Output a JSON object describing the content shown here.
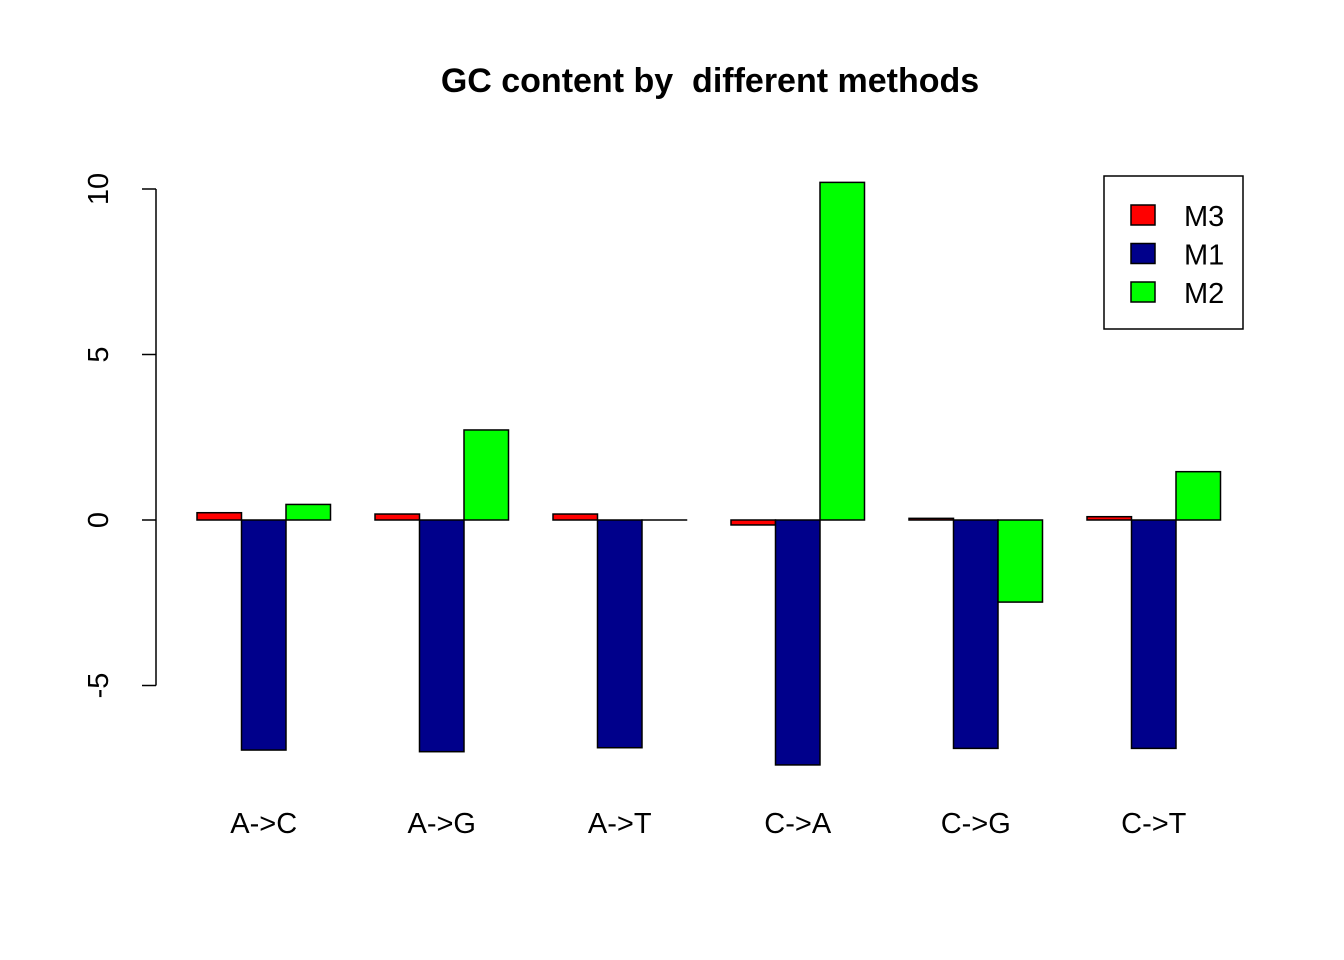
{
  "chart_data": {
    "type": "bar",
    "title": "GC content by  different methods",
    "xlabel": "",
    "ylabel": "",
    "categories": [
      "A->C",
      "A->G",
      "A->T",
      "C->A",
      "C->G",
      "C->T"
    ],
    "series": [
      {
        "name": "M3",
        "color": "#ff0000",
        "values": [
          0.22,
          0.18,
          0.18,
          -0.15,
          0.05,
          0.1
        ]
      },
      {
        "name": "M1",
        "color": "#00008b",
        "values": [
          -6.95,
          -7.0,
          -6.88,
          -7.4,
          -6.9,
          -6.9
        ]
      },
      {
        "name": "M2",
        "color": "#00ff00",
        "values": [
          0.47,
          2.72,
          0.0,
          10.2,
          -2.48,
          1.46
        ]
      }
    ],
    "ylim": [
      -7.5,
      10.5
    ],
    "yticks": [
      -5,
      0,
      5,
      10
    ],
    "grid": false,
    "legend_position": "top-right"
  }
}
